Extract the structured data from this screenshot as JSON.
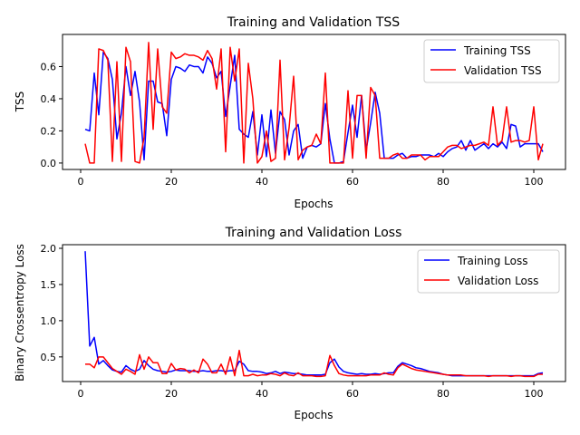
{
  "chart_data": [
    {
      "type": "line",
      "title": "Training and Validation TSS",
      "xlabel": "Epochs",
      "ylabel": "TSS",
      "xlim": [
        -4,
        107
      ],
      "ylim": [
        -0.04,
        0.8
      ],
      "xticks": [
        0,
        20,
        40,
        60,
        80,
        100
      ],
      "yticks": [
        0.0,
        0.2,
        0.4,
        0.6
      ],
      "ytick_labels": [
        "0.0",
        "0.2",
        "0.4",
        "0.6"
      ],
      "grid": false,
      "legend": "upper right",
      "series": [
        {
          "name": "Training TSS",
          "color": "#0000ff",
          "x": [
            1,
            2,
            3,
            4,
            5,
            6,
            7,
            8,
            9,
            10,
            11,
            12,
            13,
            14,
            15,
            16,
            17,
            18,
            19,
            20,
            21,
            22,
            23,
            24,
            25,
            26,
            27,
            28,
            29,
            30,
            31,
            32,
            33,
            34,
            35,
            36,
            37,
            38,
            39,
            40,
            41,
            42,
            43,
            44,
            45,
            46,
            47,
            48,
            49,
            50,
            51,
            52,
            53,
            54,
            55,
            56,
            57,
            58,
            59,
            60,
            61,
            62,
            63,
            64,
            65,
            66,
            67,
            68,
            69,
            70,
            71,
            72,
            73,
            74,
            75,
            76,
            77,
            78,
            79,
            80,
            81,
            82,
            83,
            84,
            85,
            86,
            87,
            88,
            89,
            90,
            91,
            92,
            93,
            94,
            95,
            96,
            97,
            98,
            99,
            100,
            101,
            102
          ],
          "values": [
            0.21,
            0.2,
            0.56,
            0.3,
            0.69,
            0.65,
            0.52,
            0.15,
            0.31,
            0.6,
            0.42,
            0.57,
            0.38,
            0.02,
            0.51,
            0.51,
            0.38,
            0.37,
            0.17,
            0.52,
            0.6,
            0.59,
            0.57,
            0.61,
            0.6,
            0.6,
            0.56,
            0.66,
            0.62,
            0.53,
            0.57,
            0.29,
            0.48,
            0.67,
            0.21,
            0.18,
            0.16,
            0.32,
            0.05,
            0.3,
            0.04,
            0.33,
            0.06,
            0.32,
            0.27,
            0.05,
            0.2,
            0.24,
            0.03,
            0.1,
            0.11,
            0.1,
            0.12,
            0.37,
            0.15,
            0.0,
            0.0,
            0.01,
            0.19,
            0.36,
            0.16,
            0.42,
            0.08,
            0.25,
            0.44,
            0.31,
            0.03,
            0.03,
            0.03,
            0.05,
            0.06,
            0.03,
            0.04,
            0.04,
            0.05,
            0.05,
            0.05,
            0.04,
            0.06,
            0.04,
            0.07,
            0.09,
            0.1,
            0.14,
            0.08,
            0.14,
            0.08,
            0.1,
            0.12,
            0.09,
            0.12,
            0.1,
            0.13,
            0.09,
            0.24,
            0.23,
            0.1,
            0.12,
            0.12,
            0.12,
            0.12,
            0.07
          ]
        },
        {
          "name": "Validation TSS",
          "color": "#ff0000",
          "x": [
            1,
            2,
            3,
            4,
            5,
            6,
            7,
            8,
            9,
            10,
            11,
            12,
            13,
            14,
            15,
            16,
            17,
            18,
            19,
            20,
            21,
            22,
            23,
            24,
            25,
            26,
            27,
            28,
            29,
            30,
            31,
            32,
            33,
            34,
            35,
            36,
            37,
            38,
            39,
            40,
            41,
            42,
            43,
            44,
            45,
            46,
            47,
            48,
            49,
            50,
            51,
            52,
            53,
            54,
            55,
            56,
            57,
            58,
            59,
            60,
            61,
            62,
            63,
            64,
            65,
            66,
            67,
            68,
            69,
            70,
            71,
            72,
            73,
            74,
            75,
            76,
            77,
            78,
            79,
            80,
            81,
            82,
            83,
            84,
            85,
            86,
            87,
            88,
            89,
            90,
            91,
            92,
            93,
            94,
            95,
            96,
            97,
            98,
            99,
            100,
            101,
            102
          ],
          "values": [
            0.12,
            0.0,
            0.0,
            0.71,
            0.7,
            0.64,
            0.01,
            0.63,
            0.01,
            0.72,
            0.63,
            0.01,
            0.0,
            0.16,
            0.75,
            0.21,
            0.71,
            0.35,
            0.31,
            0.69,
            0.65,
            0.66,
            0.68,
            0.67,
            0.67,
            0.66,
            0.64,
            0.7,
            0.65,
            0.46,
            0.71,
            0.07,
            0.72,
            0.51,
            0.71,
            0.0,
            0.62,
            0.4,
            0.0,
            0.04,
            0.2,
            0.01,
            0.03,
            0.64,
            0.02,
            0.22,
            0.54,
            0.02,
            0.08,
            0.1,
            0.11,
            0.18,
            0.12,
            0.56,
            0.0,
            0.0,
            0.0,
            0.0,
            0.45,
            0.03,
            0.42,
            0.42,
            0.03,
            0.47,
            0.42,
            0.03,
            0.03,
            0.03,
            0.05,
            0.06,
            0.03,
            0.03,
            0.05,
            0.05,
            0.05,
            0.02,
            0.04,
            0.04,
            0.04,
            0.07,
            0.1,
            0.11,
            0.11,
            0.09,
            0.1,
            0.11,
            0.11,
            0.12,
            0.13,
            0.11,
            0.35,
            0.11,
            0.14,
            0.35,
            0.13,
            0.14,
            0.14,
            0.13,
            0.14,
            0.35,
            0.02,
            0.12
          ]
        }
      ]
    },
    {
      "type": "line",
      "title": "Training and Validation Loss",
      "xlabel": "Epochs",
      "ylabel": "Binary Crossentropy Loss",
      "xlim": [
        -4,
        107
      ],
      "ylim": [
        0.16,
        2.05
      ],
      "xticks": [
        0,
        20,
        40,
        60,
        80,
        100
      ],
      "yticks": [
        0.5,
        1.0,
        1.5,
        2.0
      ],
      "ytick_labels": [
        "0.5",
        "1.0",
        "1.5",
        "2.0"
      ],
      "grid": false,
      "legend": "upper right",
      "series": [
        {
          "name": "Training Loss",
          "color": "#0000ff",
          "x": [
            1,
            2,
            3,
            4,
            5,
            6,
            7,
            8,
            9,
            10,
            11,
            12,
            13,
            14,
            15,
            16,
            17,
            18,
            19,
            20,
            21,
            22,
            23,
            24,
            25,
            26,
            27,
            28,
            29,
            30,
            31,
            32,
            33,
            34,
            35,
            36,
            37,
            38,
            39,
            40,
            41,
            42,
            43,
            44,
            45,
            46,
            47,
            48,
            49,
            50,
            51,
            52,
            53,
            54,
            55,
            56,
            57,
            58,
            59,
            60,
            61,
            62,
            63,
            64,
            65,
            66,
            67,
            68,
            69,
            70,
            71,
            72,
            73,
            74,
            75,
            76,
            77,
            78,
            79,
            80,
            81,
            82,
            83,
            84,
            85,
            86,
            87,
            88,
            89,
            90,
            91,
            92,
            93,
            94,
            95,
            96,
            97,
            98,
            99,
            100,
            101,
            102
          ],
          "values": [
            1.96,
            0.65,
            0.77,
            0.4,
            0.45,
            0.38,
            0.32,
            0.3,
            0.29,
            0.38,
            0.33,
            0.3,
            0.33,
            0.45,
            0.38,
            0.33,
            0.31,
            0.3,
            0.29,
            0.3,
            0.32,
            0.31,
            0.31,
            0.31,
            0.3,
            0.3,
            0.31,
            0.3,
            0.3,
            0.31,
            0.31,
            0.3,
            0.31,
            0.31,
            0.44,
            0.4,
            0.31,
            0.3,
            0.3,
            0.29,
            0.27,
            0.28,
            0.3,
            0.27,
            0.29,
            0.28,
            0.27,
            0.27,
            0.26,
            0.25,
            0.25,
            0.25,
            0.25,
            0.26,
            0.42,
            0.47,
            0.36,
            0.3,
            0.28,
            0.27,
            0.26,
            0.27,
            0.26,
            0.26,
            0.27,
            0.26,
            0.27,
            0.28,
            0.28,
            0.37,
            0.42,
            0.4,
            0.38,
            0.35,
            0.34,
            0.32,
            0.3,
            0.29,
            0.28,
            0.26,
            0.25,
            0.24,
            0.24,
            0.24,
            0.24,
            0.24,
            0.24,
            0.24,
            0.24,
            0.24,
            0.24,
            0.24,
            0.24,
            0.24,
            0.24,
            0.24,
            0.24,
            0.24,
            0.24,
            0.24,
            0.27,
            0.28
          ]
        },
        {
          "name": "Validation Loss",
          "color": "#ff0000",
          "x": [
            1,
            2,
            3,
            4,
            5,
            6,
            7,
            8,
            9,
            10,
            11,
            12,
            13,
            14,
            15,
            16,
            17,
            18,
            19,
            20,
            21,
            22,
            23,
            24,
            25,
            26,
            27,
            28,
            29,
            30,
            31,
            32,
            33,
            34,
            35,
            36,
            37,
            38,
            39,
            40,
            41,
            42,
            43,
            44,
            45,
            46,
            47,
            48,
            49,
            50,
            51,
            52,
            53,
            54,
            55,
            56,
            57,
            58,
            59,
            60,
            61,
            62,
            63,
            64,
            65,
            66,
            67,
            68,
            69,
            70,
            71,
            72,
            73,
            74,
            75,
            76,
            77,
            78,
            79,
            80,
            81,
            82,
            83,
            84,
            85,
            86,
            87,
            88,
            89,
            90,
            91,
            92,
            93,
            94,
            95,
            96,
            97,
            98,
            99,
            100,
            101,
            102
          ],
          "values": [
            0.4,
            0.4,
            0.35,
            0.5,
            0.5,
            0.42,
            0.34,
            0.3,
            0.26,
            0.33,
            0.3,
            0.26,
            0.53,
            0.33,
            0.5,
            0.42,
            0.42,
            0.27,
            0.27,
            0.41,
            0.32,
            0.34,
            0.33,
            0.28,
            0.32,
            0.28,
            0.47,
            0.4,
            0.28,
            0.28,
            0.4,
            0.26,
            0.5,
            0.24,
            0.59,
            0.24,
            0.24,
            0.26,
            0.24,
            0.25,
            0.25,
            0.27,
            0.26,
            0.24,
            0.28,
            0.25,
            0.24,
            0.28,
            0.24,
            0.24,
            0.24,
            0.23,
            0.23,
            0.24,
            0.52,
            0.38,
            0.27,
            0.25,
            0.24,
            0.24,
            0.24,
            0.24,
            0.24,
            0.25,
            0.25,
            0.25,
            0.28,
            0.26,
            0.25,
            0.35,
            0.4,
            0.37,
            0.34,
            0.32,
            0.31,
            0.3,
            0.29,
            0.28,
            0.27,
            0.26,
            0.25,
            0.25,
            0.25,
            0.25,
            0.24,
            0.24,
            0.24,
            0.24,
            0.24,
            0.23,
            0.24,
            0.24,
            0.24,
            0.24,
            0.23,
            0.24,
            0.24,
            0.23,
            0.23,
            0.23,
            0.26,
            0.26
          ]
        }
      ]
    }
  ]
}
